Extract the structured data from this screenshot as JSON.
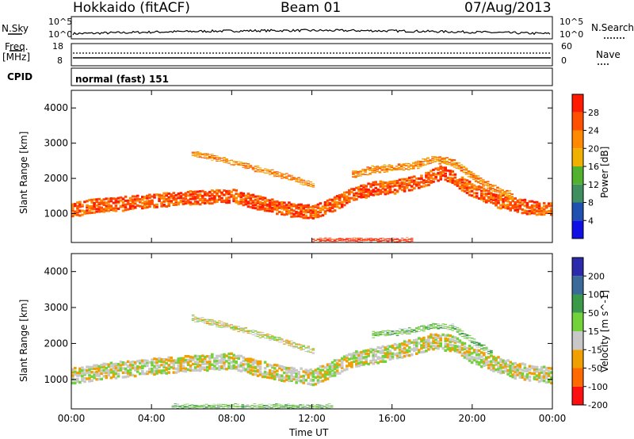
{
  "header": {
    "station": "Hokkaido (fitACF)",
    "beam": "Beam 01",
    "date": "07/Aug/2013"
  },
  "top_panels": {
    "nsky_label": "N.Sky",
    "nsky_ticks": [
      "10^5",
      "10^0"
    ],
    "nsearch_label": "N.Search",
    "nsearch_ticks": [
      "10^5",
      "10^0"
    ],
    "freq_label_1": "Freq.",
    "freq_label_2": "[MHz]",
    "freq_ticks": [
      "18",
      "8"
    ],
    "nave_label": "Nave",
    "nave_ticks": [
      "60",
      "0"
    ],
    "cpid_label": "CPID",
    "cpid_text": "normal (fast) 151"
  },
  "chart_data": [
    {
      "type": "heatmap",
      "name": "power",
      "ylabel": "Slant Range [km]",
      "xlabel": "Time UT",
      "x_ticks": [
        "00:00",
        "04:00",
        "08:00",
        "12:00",
        "16:00",
        "20:00",
        "00:00"
      ],
      "xlim_hours": [
        0,
        24
      ],
      "y_ticks": [
        1000,
        2000,
        3000,
        4000
      ],
      "ylim": [
        180,
        4500
      ],
      "colorbar": {
        "label": "Power [dB]",
        "ticks": [
          "4",
          "8",
          "12",
          "16",
          "20",
          "24",
          "28"
        ],
        "colors": [
          "#1010e6",
          "#2050b0",
          "#3f8f5f",
          "#52b230",
          "#f0b000",
          "#ff8a00",
          "#ff5000",
          "#ff1a00"
        ]
      },
      "bands": [
        {
          "t": [
            0,
            0.9,
            2,
            4,
            6,
            8,
            9,
            10,
            11,
            12,
            13,
            14,
            15,
            16,
            17,
            18,
            18.5,
            19,
            20,
            21,
            22,
            23,
            24
          ],
          "r": [
            1100,
            1200,
            1250,
            1350,
            1450,
            1500,
            1350,
            1200,
            1100,
            1050,
            1250,
            1550,
            1700,
            1750,
            1850,
            2050,
            2200,
            2000,
            1650,
            1400,
            1250,
            1150,
            1100
          ],
          "w": 400,
          "level": 6
        },
        {
          "t": [
            6,
            7,
            8,
            9,
            10,
            11,
            12
          ],
          "r": [
            2700,
            2600,
            2450,
            2300,
            2150,
            2000,
            1800
          ],
          "w": 150,
          "level": 5
        },
        {
          "t": [
            14,
            15,
            16,
            17,
            18,
            19,
            20,
            21,
            22
          ],
          "r": [
            2100,
            2250,
            2300,
            2350,
            2550,
            2450,
            2050,
            1700,
            1500
          ],
          "w": 200,
          "level": 5
        },
        {
          "t": [
            12,
            13,
            14,
            15,
            16,
            17
          ],
          "r": [
            250,
            250,
            250,
            250,
            250,
            250
          ],
          "w": 90,
          "level": 7
        }
      ]
    },
    {
      "type": "heatmap",
      "name": "velocity",
      "ylabel": "Slant Range [km]",
      "xlabel": "Time UT",
      "x_ticks": [
        "00:00",
        "04:00",
        "08:00",
        "12:00",
        "16:00",
        "20:00",
        "00:00"
      ],
      "xlim_hours": [
        0,
        24
      ],
      "y_ticks": [
        1000,
        2000,
        3000,
        4000
      ],
      "ylim": [
        180,
        4500
      ],
      "colorbar": {
        "label": "Velocity [m s^-1]",
        "ticks": [
          "200",
          "100",
          "50",
          "15",
          "-15",
          "-50",
          "-100",
          "-200"
        ],
        "colors": [
          "#2a2aaa",
          "#3a6a9a",
          "#3a9a4a",
          "#72d23a",
          "#c8c8c8",
          "#f0a000",
          "#ff6a00",
          "#ff1010"
        ]
      },
      "bands": [
        {
          "t": [
            0,
            2,
            4,
            6,
            8,
            10,
            12,
            14,
            16,
            18,
            19,
            20,
            22,
            24
          ],
          "r": [
            1100,
            1250,
            1350,
            1450,
            1500,
            1200,
            1050,
            1550,
            1750,
            2050,
            2000,
            1650,
            1250,
            1100
          ],
          "w": 450,
          "level": 4
        },
        {
          "t": [
            6,
            8,
            10,
            12
          ],
          "r": [
            2700,
            2450,
            2150,
            1800
          ],
          "w": 150,
          "level": 4
        },
        {
          "t": [
            15,
            17,
            18,
            19,
            20,
            21
          ],
          "r": [
            2250,
            2350,
            2500,
            2450,
            2050,
            1700
          ],
          "w": 150,
          "level": 3
        },
        {
          "t": [
            5,
            7,
            9,
            11,
            13
          ],
          "r": [
            250,
            250,
            250,
            250,
            250
          ],
          "w": 100,
          "level": 3
        }
      ]
    }
  ]
}
